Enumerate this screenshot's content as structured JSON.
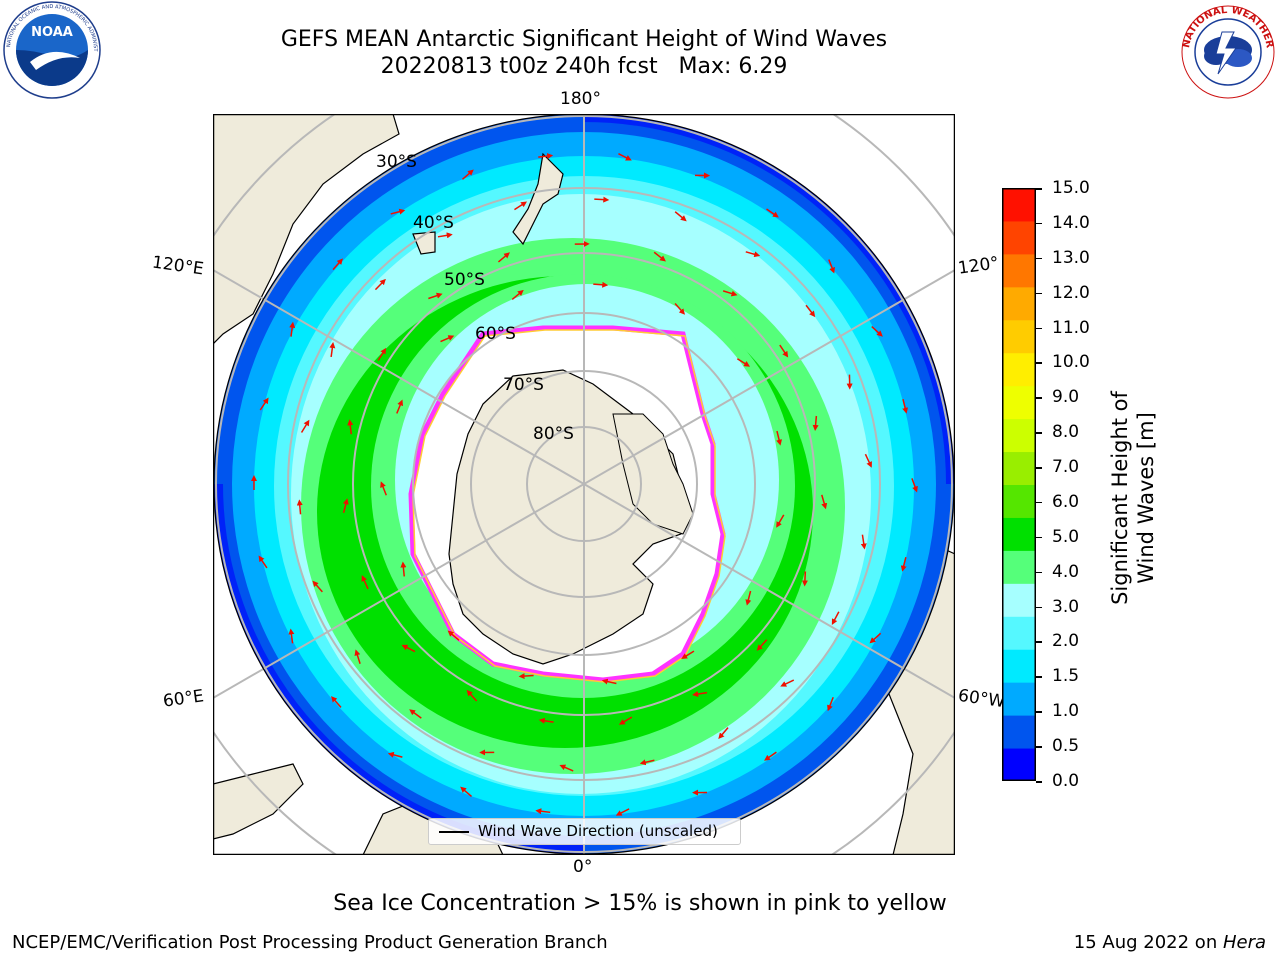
{
  "header": {
    "title": "GEFS MEAN Antarctic Significant Height of Wind Waves",
    "subtitle": "20220813 t00z 240h fcst   Max: 6.29"
  },
  "logos": {
    "noaa": {
      "name": "noaa-logo",
      "text": "NOAA",
      "ring_text": "NATIONAL OCEANIC AND ATMOSPHERIC ADMINISTRATION · U.S. DEPARTMENT OF COMMERCE"
    },
    "nws": {
      "name": "nws-logo",
      "ring_text": "NATIONAL WEATHER SERVICE"
    }
  },
  "map": {
    "longitude_labels": {
      "top": "180°",
      "bottom": "0°",
      "left_upper": "120°E",
      "left_lower": "60°E",
      "right_upper": "120°",
      "right_lower": "60°W"
    },
    "latitude_labels": [
      "30°S",
      "40°S",
      "50°S",
      "60°S",
      "70°S",
      "80°S"
    ],
    "legend_label": "Wind Wave Direction (unscaled)",
    "colors": {
      "land": "#efebdb",
      "ice_edge": "#ff33ff",
      "ice_edge_inner": "#ffcc33",
      "arrow": "#ee1100",
      "graticule": "#b8b8b8"
    }
  },
  "colorbar": {
    "label": "Significant Height of Wind Waves [m]",
    "ticks": [
      "15.0",
      "14.0",
      "13.0",
      "12.0",
      "11.0",
      "10.0",
      "9.0",
      "8.0",
      "7.0",
      "6.0",
      "5.0",
      "4.0",
      "3.0",
      "2.0",
      "1.5",
      "1.0",
      "0.5",
      "0.0"
    ],
    "colors": [
      "#0000ff",
      "#0055ee",
      "#00aaff",
      "#00eaff",
      "#55f8ff",
      "#a6ffff",
      "#55ff7a",
      "#00e000",
      "#55e600",
      "#99ee00",
      "#ccff00",
      "#eeff00",
      "#ffee00",
      "#ffcc00",
      "#ffaa00",
      "#ff7700",
      "#ff4400",
      "#ff1100"
    ]
  },
  "footer": {
    "note": "Sea Ice Concentration > 15% is shown in pink to yellow",
    "left": "NCEP/EMC/Verification Post Processing Product Generation Branch",
    "right_date": "15 Aug 2022 on ",
    "right_host": "Hera"
  }
}
